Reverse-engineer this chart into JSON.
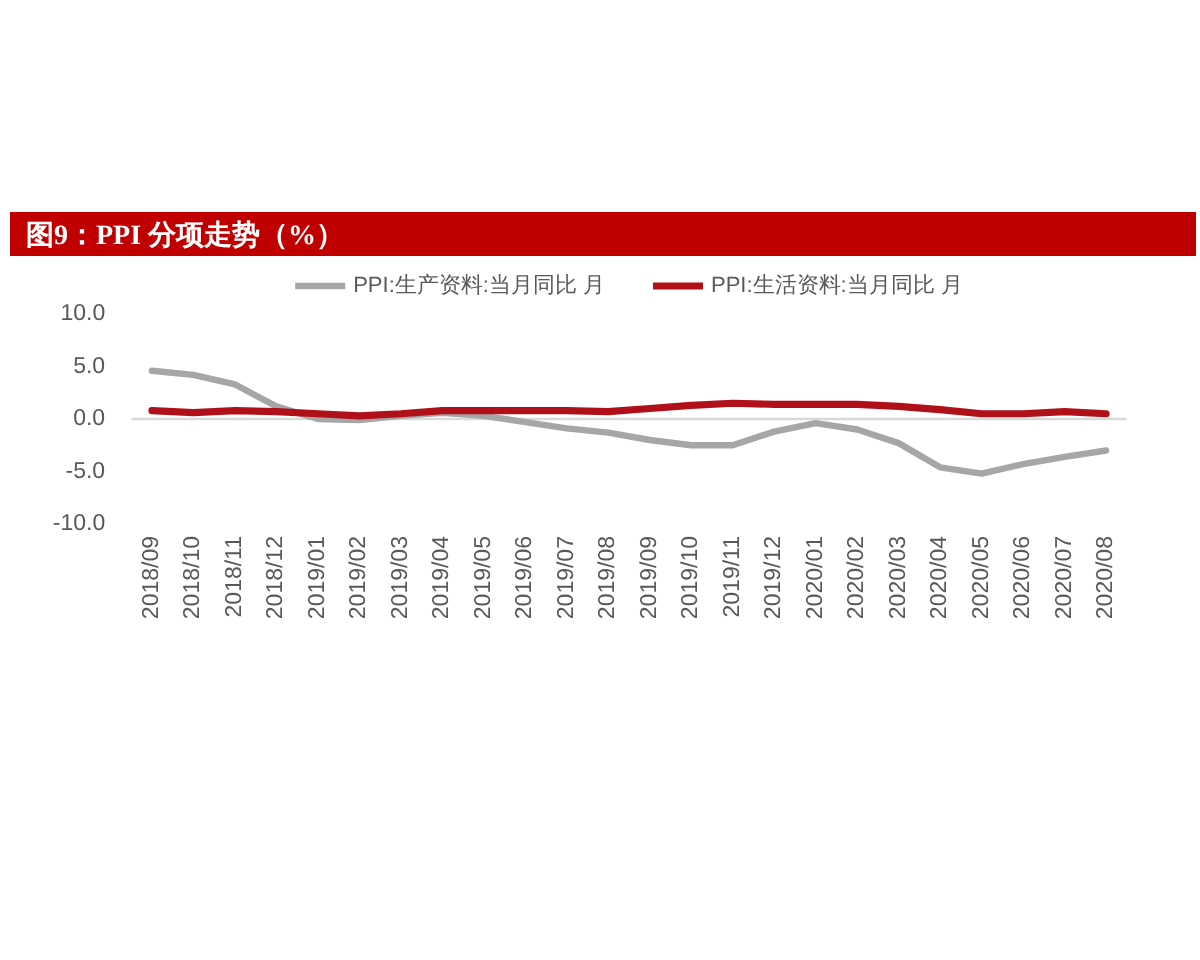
{
  "chart_data": {
    "type": "line",
    "title": "图9：PPI 分项走势（%）",
    "categories": [
      "2018/09",
      "2018/10",
      "2018/11",
      "2018/12",
      "2019/01",
      "2019/02",
      "2019/03",
      "2019/04",
      "2019/05",
      "2019/06",
      "2019/07",
      "2019/08",
      "2019/09",
      "2019/10",
      "2019/11",
      "2019/12",
      "2020/01",
      "2020/02",
      "2020/03",
      "2020/04",
      "2020/05",
      "2020/06",
      "2020/07",
      "2020/08"
    ],
    "series": [
      {
        "name": "PPI:生产资料:当月同比 月",
        "color": "#a6a6a6",
        "values": [
          4.6,
          4.2,
          3.3,
          1.2,
          0.0,
          -0.1,
          0.3,
          0.6,
          0.3,
          -0.3,
          -0.9,
          -1.3,
          -2.0,
          -2.5,
          -2.5,
          -1.2,
          -0.4,
          -1.0,
          -2.3,
          -4.6,
          -5.2,
          -4.3,
          -3.6,
          -3.0
        ]
      },
      {
        "name": "PPI:生活资料:当月同比 月",
        "color": "#b01018",
        "values": [
          0.8,
          0.6,
          0.8,
          0.7,
          0.5,
          0.3,
          0.5,
          0.8,
          0.8,
          0.8,
          0.8,
          0.7,
          1.0,
          1.3,
          1.5,
          1.4,
          1.4,
          1.4,
          1.2,
          0.9,
          0.5,
          0.5,
          0.7,
          0.5
        ]
      }
    ],
    "ylim": [
      -10,
      10
    ],
    "yticks": [
      {
        "value": -10,
        "label": "-10.0"
      },
      {
        "value": -5,
        "label": "-5.0"
      },
      {
        "value": 0,
        "label": "0.0"
      },
      {
        "value": 5,
        "label": "5.0"
      },
      {
        "value": 10,
        "label": "10.0"
      }
    ],
    "legend": "top",
    "line_style": "solid"
  }
}
